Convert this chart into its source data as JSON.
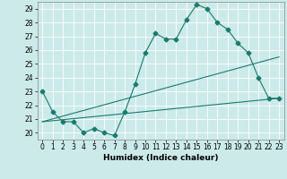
{
  "title": "",
  "xlabel": "Humidex (Indice chaleur)",
  "bg_color": "#cceaea",
  "grid_color": "#ffffff",
  "line_color": "#1a7a6e",
  "xlim": [
    -0.5,
    23.5
  ],
  "ylim": [
    19.5,
    29.5
  ],
  "yticks": [
    20,
    21,
    22,
    23,
    24,
    25,
    26,
    27,
    28,
    29
  ],
  "xticks": [
    0,
    1,
    2,
    3,
    4,
    5,
    6,
    7,
    8,
    9,
    10,
    11,
    12,
    13,
    14,
    15,
    16,
    17,
    18,
    19,
    20,
    21,
    22,
    23
  ],
  "line1_x": [
    0,
    1,
    2,
    3,
    4,
    5,
    6,
    7,
    8,
    9,
    10,
    11,
    12,
    13,
    14,
    15,
    16,
    17,
    18,
    19,
    20,
    21,
    22,
    23
  ],
  "line1_y": [
    23.0,
    21.5,
    20.8,
    20.8,
    20.0,
    20.3,
    20.0,
    19.8,
    21.5,
    23.5,
    25.8,
    27.2,
    26.8,
    26.8,
    28.2,
    29.3,
    29.0,
    28.0,
    27.5,
    26.5,
    25.8,
    24.0,
    22.5,
    22.5
  ],
  "line2_x": [
    0,
    23
  ],
  "line2_y": [
    20.8,
    22.5
  ],
  "line3_x": [
    0,
    23
  ],
  "line3_y": [
    20.8,
    25.5
  ],
  "marker": "D",
  "marker_size": 2.5,
  "linewidth": 0.8,
  "xlabel_fontsize": 6.5,
  "tick_fontsize": 5.5
}
